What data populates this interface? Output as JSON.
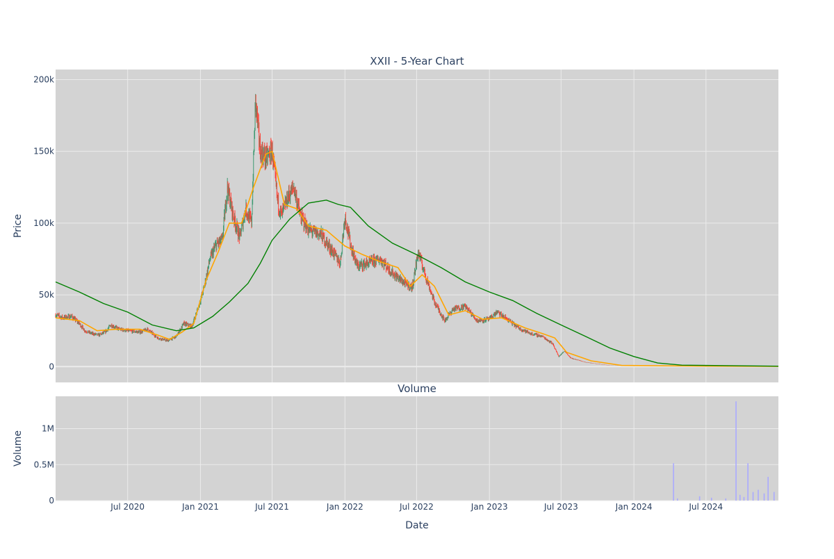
{
  "chart_data": {
    "type": "candlestick",
    "title": "XXII - 5-Year Chart",
    "xlabel": "Date",
    "background": "#ffffff",
    "plot_background": "#d3d3d3",
    "grid_color": "#ebebeb",
    "colors": {
      "increasing": "#3d9970",
      "decreasing": "#ff4136",
      "ma_short": "#ffa500",
      "ma_long": "#008000",
      "volume": "#aaaaff",
      "text": "#2a3f5f"
    },
    "x_axis": {
      "range": [
        "2020-01-01",
        "2024-12-31"
      ],
      "ticks": [
        {
          "date": "2020-07-01",
          "label": "Jul 2020"
        },
        {
          "date": "2021-01-01",
          "label": "Jan 2021"
        },
        {
          "date": "2021-07-01",
          "label": "Jul 2021"
        },
        {
          "date": "2022-01-01",
          "label": "Jan 2022"
        },
        {
          "date": "2022-07-01",
          "label": "Jul 2022"
        },
        {
          "date": "2023-01-01",
          "label": "Jan 2023"
        },
        {
          "date": "2023-07-01",
          "label": "Jul 2023"
        },
        {
          "date": "2024-01-01",
          "label": "Jan 2024"
        },
        {
          "date": "2024-07-01",
          "label": "Jul 2024"
        }
      ]
    },
    "price_panel": {
      "ylabel": "Price",
      "ylim": [
        -11000,
        207000
      ],
      "ticks": [
        {
          "value": 0,
          "label": "0"
        },
        {
          "value": 50000,
          "label": "50k"
        },
        {
          "value": 100000,
          "label": "100k"
        },
        {
          "value": 150000,
          "label": "150k"
        },
        {
          "value": 200000,
          "label": "200k"
        }
      ],
      "close_series": [
        [
          "2020-01-01",
          36000
        ],
        [
          "2020-01-20",
          34000
        ],
        [
          "2020-02-10",
          35000
        ],
        [
          "2020-03-01",
          30000
        ],
        [
          "2020-03-15",
          25000
        ],
        [
          "2020-04-01",
          23000
        ],
        [
          "2020-04-20",
          22000
        ],
        [
          "2020-05-05",
          24000
        ],
        [
          "2020-05-20",
          29000
        ],
        [
          "2020-06-10",
          26000
        ],
        [
          "2020-07-01",
          25000
        ],
        [
          "2020-08-01",
          24000
        ],
        [
          "2020-08-20",
          26000
        ],
        [
          "2020-09-15",
          20000
        ],
        [
          "2020-10-10",
          18000
        ],
        [
          "2020-11-01",
          21000
        ],
        [
          "2020-11-20",
          30000
        ],
        [
          "2020-12-10",
          28000
        ],
        [
          "2020-12-25",
          40000
        ],
        [
          "2021-01-10",
          55000
        ],
        [
          "2021-01-25",
          75000
        ],
        [
          "2021-02-10",
          85000
        ],
        [
          "2021-02-25",
          88000
        ],
        [
          "2021-03-10",
          125000
        ],
        [
          "2021-03-25",
          105000
        ],
        [
          "2021-04-10",
          90000
        ],
        [
          "2021-04-25",
          110000
        ],
        [
          "2021-05-10",
          100000
        ],
        [
          "2021-05-20",
          185000
        ],
        [
          "2021-06-01",
          150000
        ],
        [
          "2021-06-15",
          145000
        ],
        [
          "2021-07-01",
          150000
        ],
        [
          "2021-07-15",
          115000
        ],
        [
          "2021-07-25",
          105000
        ],
        [
          "2021-08-10",
          118000
        ],
        [
          "2021-08-25",
          125000
        ],
        [
          "2021-09-10",
          105000
        ],
        [
          "2021-10-01",
          95000
        ],
        [
          "2021-11-01",
          92000
        ],
        [
          "2021-12-01",
          80000
        ],
        [
          "2021-12-20",
          72000
        ],
        [
          "2022-01-01",
          105000
        ],
        [
          "2022-01-15",
          85000
        ],
        [
          "2022-02-01",
          70000
        ],
        [
          "2022-03-01",
          72000
        ],
        [
          "2022-04-01",
          75000
        ],
        [
          "2022-05-01",
          65000
        ],
        [
          "2022-06-01",
          58000
        ],
        [
          "2022-06-20",
          55000
        ],
        [
          "2022-07-05",
          80000
        ],
        [
          "2022-07-25",
          62000
        ],
        [
          "2022-08-15",
          45000
        ],
        [
          "2022-09-10",
          32000
        ],
        [
          "2022-10-01",
          40000
        ],
        [
          "2022-11-01",
          42000
        ],
        [
          "2022-12-01",
          32000
        ],
        [
          "2023-01-01",
          33000
        ],
        [
          "2023-01-20",
          38000
        ],
        [
          "2023-02-15",
          33000
        ],
        [
          "2023-03-15",
          27000
        ],
        [
          "2023-04-15",
          23000
        ],
        [
          "2023-05-15",
          21000
        ],
        [
          "2023-06-10",
          16000
        ],
        [
          "2023-06-25",
          7000
        ],
        [
          "2023-07-10",
          11000
        ],
        [
          "2023-07-25",
          6000
        ],
        [
          "2023-09-01",
          3000
        ],
        [
          "2023-11-01",
          800
        ],
        [
          "2024-01-01",
          600
        ],
        [
          "2024-04-01",
          500
        ],
        [
          "2024-07-01",
          300
        ],
        [
          "2024-12-31",
          200
        ]
      ],
      "ma_short_series": [
        [
          "2020-01-01",
          34000
        ],
        [
          "2020-03-01",
          32000
        ],
        [
          "2020-04-15",
          25000
        ],
        [
          "2020-06-01",
          26000
        ],
        [
          "2020-08-01",
          26000
        ],
        [
          "2020-09-15",
          22000
        ],
        [
          "2020-10-15",
          19000
        ],
        [
          "2020-11-15",
          24000
        ],
        [
          "2020-12-15",
          30000
        ],
        [
          "2021-01-15",
          60000
        ],
        [
          "2021-02-15",
          80000
        ],
        [
          "2021-03-15",
          100000
        ],
        [
          "2021-04-15",
          100000
        ],
        [
          "2021-05-15",
          125000
        ],
        [
          "2021-06-15",
          148000
        ],
        [
          "2021-07-01",
          150000
        ],
        [
          "2021-08-01",
          113000
        ],
        [
          "2021-09-01",
          110000
        ],
        [
          "2021-10-01",
          98000
        ],
        [
          "2021-11-15",
          95000
        ],
        [
          "2022-01-01",
          84000
        ],
        [
          "2022-02-15",
          78000
        ],
        [
          "2022-04-01",
          73000
        ],
        [
          "2022-05-15",
          69000
        ],
        [
          "2022-06-15",
          56000
        ],
        [
          "2022-07-15",
          64000
        ],
        [
          "2022-08-15",
          56000
        ],
        [
          "2022-09-20",
          36000
        ],
        [
          "2022-11-01",
          39000
        ],
        [
          "2022-12-15",
          33000
        ],
        [
          "2023-02-01",
          34000
        ],
        [
          "2023-04-01",
          27000
        ],
        [
          "2023-05-15",
          23000
        ],
        [
          "2023-06-15",
          20000
        ],
        [
          "2023-07-15",
          10000
        ],
        [
          "2023-09-15",
          4000
        ],
        [
          "2023-12-01",
          800
        ],
        [
          "2024-06-01",
          400
        ],
        [
          "2024-12-31",
          200
        ]
      ],
      "ma_long_series": [
        [
          "2020-01-01",
          59000
        ],
        [
          "2020-03-01",
          52000
        ],
        [
          "2020-05-01",
          44000
        ],
        [
          "2020-07-01",
          38000
        ],
        [
          "2020-09-01",
          29000
        ],
        [
          "2020-11-01",
          25000
        ],
        [
          "2020-12-15",
          27000
        ],
        [
          "2021-02-01",
          35000
        ],
        [
          "2021-03-15",
          45000
        ],
        [
          "2021-05-01",
          58000
        ],
        [
          "2021-06-01",
          72000
        ],
        [
          "2021-07-01",
          88000
        ],
        [
          "2021-08-15",
          103000
        ],
        [
          "2021-10-01",
          114000
        ],
        [
          "2021-11-15",
          116000
        ],
        [
          "2021-12-15",
          113000
        ],
        [
          "2022-01-15",
          111000
        ],
        [
          "2022-03-01",
          98000
        ],
        [
          "2022-05-01",
          86000
        ],
        [
          "2022-07-01",
          78000
        ],
        [
          "2022-09-01",
          69000
        ],
        [
          "2022-11-01",
          59000
        ],
        [
          "2023-01-01",
          52000
        ],
        [
          "2023-03-01",
          46000
        ],
        [
          "2023-05-01",
          37000
        ],
        [
          "2023-07-01",
          29000
        ],
        [
          "2023-09-01",
          21000
        ],
        [
          "2023-11-01",
          13000
        ],
        [
          "2024-01-01",
          7000
        ],
        [
          "2024-03-01",
          2500
        ],
        [
          "2024-05-01",
          1000
        ],
        [
          "2024-12-31",
          300
        ]
      ]
    },
    "volume_panel": {
      "title": "Volume",
      "ylabel": "Volume",
      "ylim": [
        0,
        1450000
      ],
      "ticks": [
        {
          "value": 0,
          "label": "0"
        },
        {
          "value": 500000,
          "label": "0.5M"
        },
        {
          "value": 1000000,
          "label": "1M"
        }
      ],
      "bars": [
        [
          "2024-04-10",
          520000
        ],
        [
          "2024-04-20",
          30000
        ],
        [
          "2024-06-15",
          60000
        ],
        [
          "2024-07-15",
          40000
        ],
        [
          "2024-08-20",
          30000
        ],
        [
          "2024-09-15",
          1380000
        ],
        [
          "2024-09-25",
          80000
        ],
        [
          "2024-10-05",
          50000
        ],
        [
          "2024-10-15",
          520000
        ],
        [
          "2024-10-28",
          120000
        ],
        [
          "2024-11-10",
          150000
        ],
        [
          "2024-11-25",
          100000
        ],
        [
          "2024-12-05",
          330000
        ],
        [
          "2024-12-20",
          120000
        ]
      ]
    }
  }
}
